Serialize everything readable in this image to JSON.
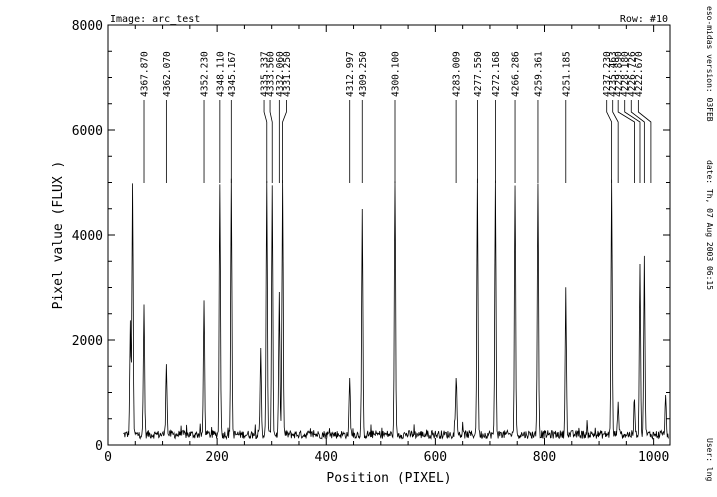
{
  "header": {
    "image_label": "Image: arc_test",
    "row_label": "Row: #10"
  },
  "side_info": {
    "version": "eso-midas version: 03FEB",
    "date": "date: Th, 07 Aug 2003 06:15",
    "user": "User: lng"
  },
  "chart_data": {
    "type": "line",
    "title": "",
    "xlabel": "Position (PIXEL)",
    "ylabel": "Pixel value (FLUX )",
    "xlim": [
      0,
      1030
    ],
    "ylim": [
      0,
      8000
    ],
    "x_ticks": [
      0,
      200,
      400,
      600,
      800,
      1000
    ],
    "y_ticks": [
      0,
      2000,
      4000,
      6000,
      8000
    ],
    "grid": false,
    "baseline": 200,
    "peaks": [
      {
        "x": 41,
        "height": 2300
      },
      {
        "x": 45,
        "height": 5000
      },
      {
        "x": 66,
        "height": 2650
      },
      {
        "x": 107,
        "height": 1600
      },
      {
        "x": 176,
        "height": 2750
      },
      {
        "x": 205,
        "height": 5000
      },
      {
        "x": 226,
        "height": 5000
      },
      {
        "x": 280,
        "height": 1800
      },
      {
        "x": 291,
        "height": 5000
      },
      {
        "x": 301,
        "height": 5000
      },
      {
        "x": 314,
        "height": 2850
      },
      {
        "x": 320,
        "height": 5000
      },
      {
        "x": 443,
        "height": 1250
      },
      {
        "x": 466,
        "height": 4450
      },
      {
        "x": 526,
        "height": 5000
      },
      {
        "x": 638,
        "height": 1300
      },
      {
        "x": 677,
        "height": 5000
      },
      {
        "x": 710,
        "height": 5000
      },
      {
        "x": 746,
        "height": 5000
      },
      {
        "x": 788,
        "height": 5000
      },
      {
        "x": 839,
        "height": 2950
      },
      {
        "x": 923,
        "height": 5000
      },
      {
        "x": 935,
        "height": 850
      },
      {
        "x": 965,
        "height": 800
      },
      {
        "x": 975,
        "height": 3500
      },
      {
        "x": 983,
        "height": 3550
      },
      {
        "x": 1022,
        "height": 900
      }
    ],
    "line_identifications": [
      {
        "x": 66,
        "label_x": 66,
        "wavelength": "4367.870"
      },
      {
        "x": 107,
        "label_x": 107,
        "wavelength": "4362.070"
      },
      {
        "x": 176,
        "label_x": 176,
        "wavelength": "4352.230"
      },
      {
        "x": 205,
        "label_x": 205,
        "wavelength": "4348.110"
      },
      {
        "x": 226,
        "label_x": 226,
        "wavelength": "4345.167"
      },
      {
        "x": 291,
        "label_x": 286,
        "wavelength": "4335.337"
      },
      {
        "x": 301,
        "label_x": 297,
        "wavelength": "4333.560"
      },
      {
        "x": 314,
        "label_x": 314,
        "wavelength": "4332.060"
      },
      {
        "x": 320,
        "label_x": 327,
        "wavelength": "4331.250"
      },
      {
        "x": 443,
        "label_x": 443,
        "wavelength": "4312.997"
      },
      {
        "x": 466,
        "label_x": 466,
        "wavelength": "4309.250"
      },
      {
        "x": 526,
        "label_x": 526,
        "wavelength": "4300.100"
      },
      {
        "x": 638,
        "label_x": 638,
        "wavelength": "4283.009"
      },
      {
        "x": 677,
        "label_x": 677,
        "wavelength": "4277.550"
      },
      {
        "x": 710,
        "label_x": 710,
        "wavelength": "4272.168"
      },
      {
        "x": 746,
        "label_x": 746,
        "wavelength": "4266.286"
      },
      {
        "x": 788,
        "label_x": 788,
        "wavelength": "4259.361"
      },
      {
        "x": 839,
        "label_x": 839,
        "wavelength": "4251.185"
      },
      {
        "x": 923,
        "label_x": 914,
        "wavelength": "4237.230"
      },
      {
        "x": 935,
        "label_x": 925,
        "wavelength": "4235.463"
      },
      {
        "x": 965,
        "label_x": 935,
        "wavelength": "4229.890"
      },
      {
        "x": 975,
        "label_x": 947,
        "wavelength": "4228.180"
      },
      {
        "x": 983,
        "label_x": 959,
        "wavelength": "4226.726"
      },
      {
        "x": 995,
        "label_x": 972,
        "wavelength": "4222.670"
      }
    ]
  }
}
